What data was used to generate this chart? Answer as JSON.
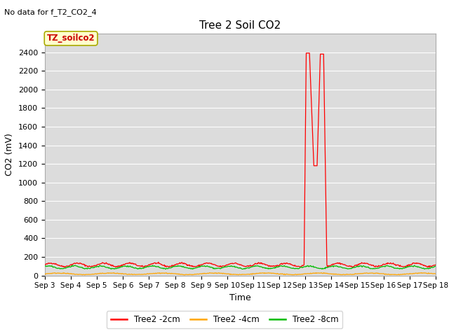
{
  "title": "Tree 2 Soil CO2",
  "no_data_text": "No data for f_T2_CO2_4",
  "ylabel": "CO2 (mV)",
  "xlabel": "Time",
  "annotation_box": "TZ_soilco2",
  "ylim": [
    0,
    2600
  ],
  "yticks": [
    0,
    200,
    400,
    600,
    800,
    1000,
    1200,
    1400,
    1600,
    1800,
    2000,
    2200,
    2400
  ],
  "x_tick_labels": [
    "Sep 3",
    "Sep 4",
    "Sep 5",
    "Sep 6",
    "Sep 7",
    "Sep 8",
    "Sep 9",
    "Sep 10",
    "Sep 11",
    "Sep 12",
    "Sep 13",
    "Sep 14",
    "Sep 15",
    "Sep 16",
    "Sep 17",
    "Sep 18"
  ],
  "bg_color": "#dcdcdc",
  "fig_bg_color": "#ffffff",
  "line_colors": {
    "red": "#ff0000",
    "orange": "#ffa500",
    "green": "#00bb00"
  },
  "legend": [
    {
      "label": "Tree2 -2cm",
      "color": "#ff0000"
    },
    {
      "label": "Tree2 -4cm",
      "color": "#ffa500"
    },
    {
      "label": "Tree2 -8cm",
      "color": "#00bb00"
    }
  ]
}
